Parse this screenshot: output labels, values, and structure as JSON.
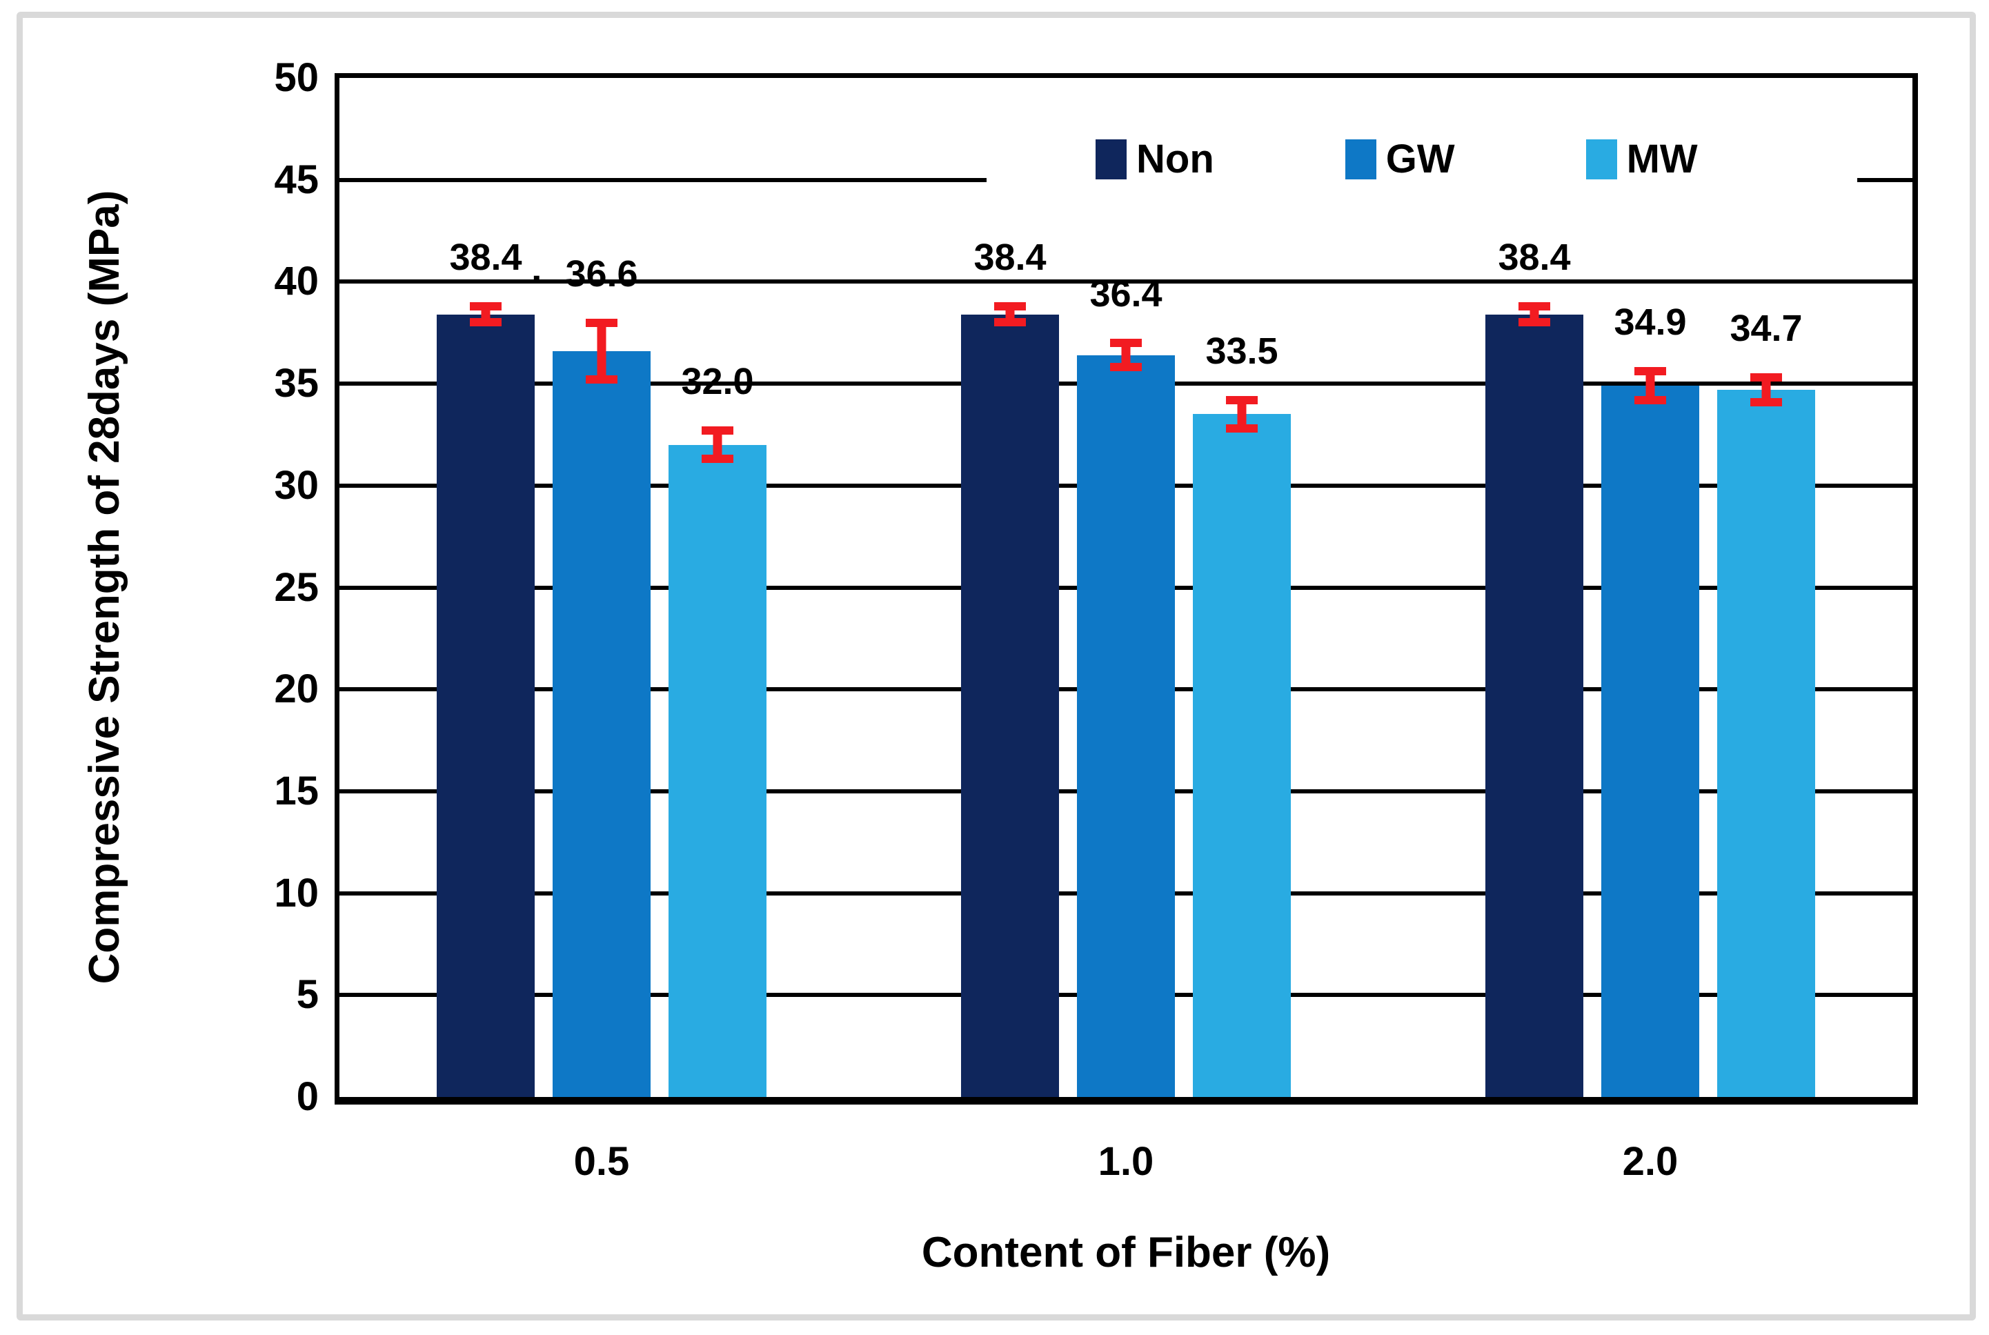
{
  "chart_data": {
    "type": "bar",
    "title": "",
    "xlabel": "Content of Fiber (%)",
    "ylabel": "Compressive Strength of 28days (MPa)",
    "categories": [
      "0.5",
      "1.0",
      "2.0"
    ],
    "series": [
      {
        "name": "Non",
        "color": "#0f265c",
        "values": [
          38.4,
          38.4,
          38.4
        ],
        "errors": [
          0.6,
          0.6,
          0.6
        ]
      },
      {
        "name": "GW",
        "color": "#0e78c6",
        "values": [
          36.6,
          36.4,
          34.9
        ],
        "errors": [
          1.6,
          0.8,
          0.9
        ]
      },
      {
        "name": "MW",
        "color": "#29abe2",
        "values": [
          32.0,
          33.5,
          34.7
        ],
        "errors": [
          0.9,
          0.9,
          0.8
        ]
      }
    ],
    "value_labels": [
      [
        "38.4",
        "36.6",
        "32.0"
      ],
      [
        "38.4",
        "36.4",
        "33.5"
      ],
      [
        "38.4",
        "34.9",
        "34.7"
      ]
    ],
    "ylim": [
      0,
      50
    ],
    "ytick_step": 5,
    "ytick_labels": [
      "0",
      "5",
      "10",
      "15",
      "20",
      "25",
      "30",
      "35",
      "40",
      "45",
      "50"
    ],
    "error_color": "#f21b21",
    "grid": "horizontal",
    "legend_position": "top-right-inside",
    "annotations": [
      {
        "text": "."
      }
    ]
  }
}
